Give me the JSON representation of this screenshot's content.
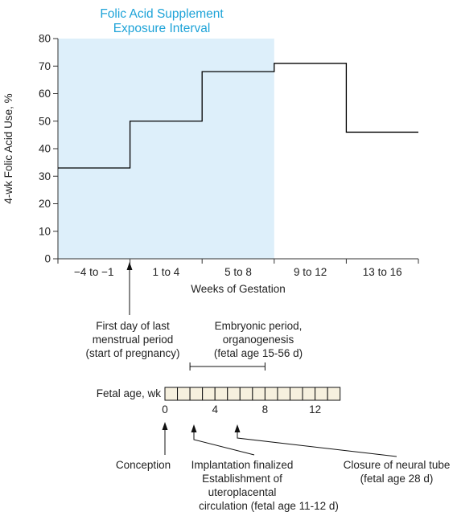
{
  "chart_data": {
    "type": "line",
    "title": "Folic Acid Supplement Exposure Interval",
    "title_lines": [
      "Folic Acid Supplement",
      "Exposure Interval"
    ],
    "ylabel": "4-wk Folic Acid Use, %",
    "xlabel": "Weeks of Gestation",
    "ylim": [
      0,
      80
    ],
    "yticks": [
      0,
      10,
      20,
      30,
      40,
      50,
      60,
      70,
      80
    ],
    "categories": [
      "−4 to −1",
      "1 to 4",
      "5 to 8",
      "9 to 12",
      "13 to 16"
    ],
    "series": [
      {
        "values": [
          33,
          50,
          68,
          71,
          46
        ]
      }
    ],
    "shaded_categories": [
      "−4 to −1",
      "1 to 4",
      "5 to 8"
    ],
    "grid": false,
    "colors": {
      "shade": "#ddeffa",
      "title": "#1ea3d8",
      "line": "#000000",
      "cells": "#f6f0de"
    }
  },
  "annotations": {
    "lmp": [
      "First day of last",
      "menstrual period",
      "(start of pregnancy)"
    ],
    "embryonic": [
      "Embryonic period,",
      "organogenesis",
      "(fetal age 15-56 d)"
    ],
    "fetal_age_label": "Fetal age, wk",
    "fetal_age_ticks": [
      "0",
      "4",
      "8",
      "12"
    ],
    "fetal_age_cells": 14,
    "embryonic_span_weeks": [
      2,
      8
    ],
    "conception": [
      "Conception"
    ],
    "implantation": [
      "Implantation finalized",
      "Establishment of",
      "uteroplacental",
      "circulation (fetal age 11-12 d)"
    ],
    "neural_tube": [
      "Closure of neural tube",
      "(fetal age 28 d)"
    ]
  }
}
